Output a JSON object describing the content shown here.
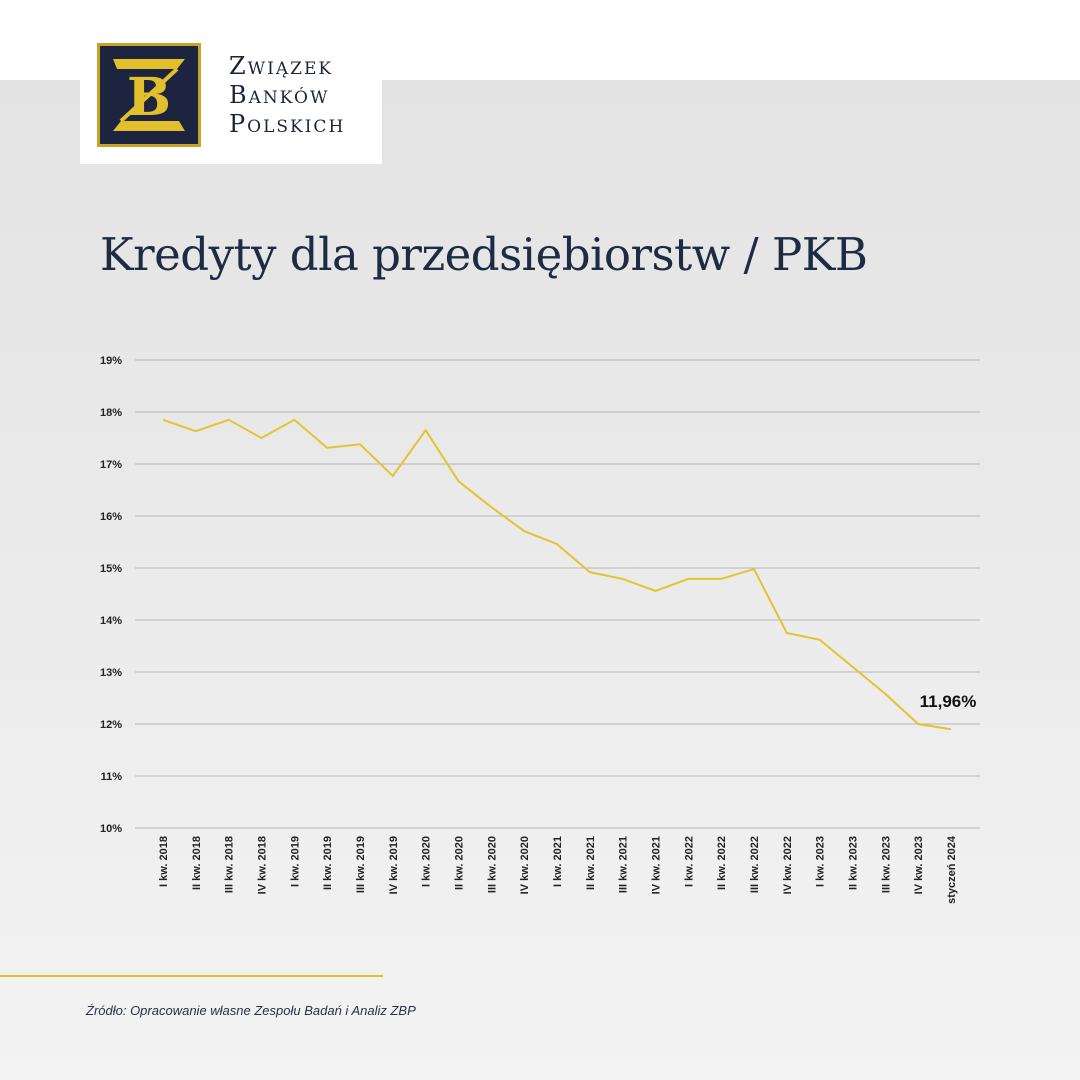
{
  "logo": {
    "lines": [
      "Związek",
      "Banków",
      "Polskich"
    ]
  },
  "title": "Kredyty dla przedsiębiorstw / PKB",
  "source": "Źródło: Opracowanie własne Zespołu Badań i Analiz ZBP",
  "colors": {
    "line": "#e5c330",
    "navy": "#1f2a44",
    "gold": "#e2bf2c",
    "grid": "#b5b5b5"
  },
  "chart_data": {
    "type": "line",
    "title": "Kredyty dla przedsiębiorstw / PKB",
    "xlabel": "",
    "ylabel": "",
    "ylim": [
      10,
      19
    ],
    "yticks": [
      "10%",
      "11%",
      "12%",
      "13%",
      "14%",
      "15%",
      "16%",
      "17%",
      "18%",
      "19%"
    ],
    "grid": true,
    "categories": [
      "I kw. 2018",
      "II kw. 2018",
      "III kw. 2018",
      "IV kw. 2018",
      "I kw. 2019",
      "II kw. 2019",
      "III kw. 2019",
      "IV kw. 2019",
      "I kw. 2020",
      "II kw. 2020",
      "III kw. 2020",
      "IV kw. 2020",
      "I kw. 2021",
      "II kw. 2021",
      "III kw. 2021",
      "IV kw. 2021",
      "I kw. 2022",
      "II kw. 2022",
      "III kw. 2022",
      "IV kw. 2022",
      "I kw. 2023",
      "II kw. 2023",
      "III kw. 2023",
      "IV kw. 2023",
      "styczeń 2024"
    ],
    "series": [
      {
        "name": "Kredyty dla przedsiębiorstw / PKB",
        "values": [
          17.85,
          17.63,
          17.85,
          17.5,
          17.85,
          17.31,
          17.38,
          16.77,
          17.65,
          16.67,
          16.17,
          15.71,
          15.46,
          14.92,
          14.79,
          14.56,
          14.79,
          14.79,
          14.98,
          13.75,
          13.62,
          13.1,
          12.58,
          12.0,
          11.9
        ]
      }
    ],
    "annotation": "11,96%"
  }
}
